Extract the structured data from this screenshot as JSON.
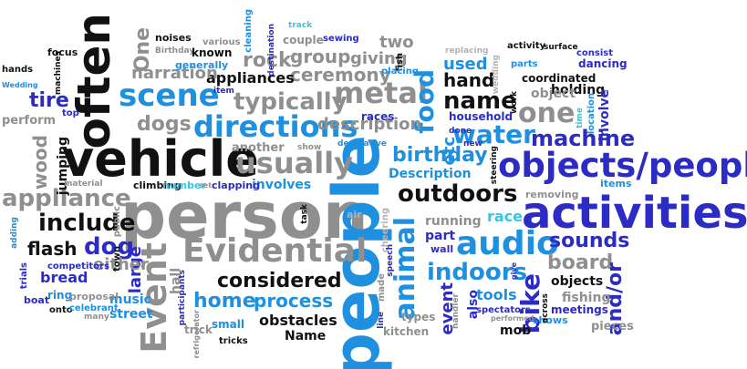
{
  "words": [
    {
      "id": "person",
      "text": "person",
      "color": "#8f8f8f"
    },
    {
      "id": "people",
      "text": "people",
      "color": "#1f8fe0"
    },
    {
      "id": "vehicle",
      "text": "vehicle",
      "color": "#111111"
    },
    {
      "id": "often",
      "text": "often",
      "color": "#111111"
    },
    {
      "id": "activities",
      "text": "activities",
      "color": "#2c2cc4"
    },
    {
      "id": "objects_people",
      "text": "objects/people",
      "color": "#2c2cc4"
    },
    {
      "id": "evidential",
      "text": "Evidential",
      "color": "#8f8f8f"
    },
    {
      "id": "event_big",
      "text": "Event",
      "color": "#8f8f8f"
    },
    {
      "id": "scene",
      "text": "scene",
      "color": "#1f8fe0"
    },
    {
      "id": "directions",
      "text": "directions",
      "color": "#1f8fe0"
    },
    {
      "id": "usually",
      "text": "usually",
      "color": "#8f8f8f"
    },
    {
      "id": "metal",
      "text": "metal",
      "color": "#8f8f8f"
    },
    {
      "id": "typically",
      "text": "typically",
      "color": "#8f8f8f"
    },
    {
      "id": "audio",
      "text": "audio",
      "color": "#1f8fe0"
    },
    {
      "id": "animal",
      "text": "animal",
      "color": "#1f8fe0"
    },
    {
      "id": "outdoors",
      "text": "outdoors",
      "color": "#111111"
    },
    {
      "id": "include",
      "text": "include",
      "color": "#111111"
    },
    {
      "id": "appliance",
      "text": "appliance",
      "color": "#8f8f8f"
    },
    {
      "id": "water",
      "text": "water",
      "color": "#1f8fe0"
    },
    {
      "id": "machine",
      "text": "machine",
      "color": "#2c2cc4"
    },
    {
      "id": "one",
      "text": "one",
      "color": "#8f8f8f"
    },
    {
      "id": "name",
      "text": "name",
      "color": "#111111"
    },
    {
      "id": "food",
      "text": "food",
      "color": "#1f8fe0"
    },
    {
      "id": "birthday",
      "text": "birthday",
      "color": "#1f8fe0"
    },
    {
      "id": "dog",
      "text": "dog",
      "color": "#2c2cc4"
    },
    {
      "id": "flash",
      "text": "flash",
      "color": "#111111"
    },
    {
      "id": "considered",
      "text": "considered",
      "color": "#111111"
    },
    {
      "id": "indoors",
      "text": "indoors",
      "color": "#1f8fe0"
    },
    {
      "id": "sounds",
      "text": "sounds",
      "color": "#2c2cc4"
    },
    {
      "id": "board",
      "text": "board",
      "color": "#8f8f8f"
    },
    {
      "id": "home",
      "text": "home",
      "color": "#1f8fe0"
    },
    {
      "id": "process",
      "text": "process",
      "color": "#1f8fe0"
    },
    {
      "id": "bike",
      "text": "bike",
      "color": "#2c2cc4"
    },
    {
      "id": "and_or",
      "text": "and/or",
      "color": "#2c2cc4"
    },
    {
      "id": "dogs",
      "text": "dogs",
      "color": "#8f8f8f"
    },
    {
      "id": "rock",
      "text": "rock",
      "color": "#8f8f8f"
    },
    {
      "id": "ceremony",
      "text": "ceremony",
      "color": "#8f8f8f"
    },
    {
      "id": "group",
      "text": "group",
      "color": "#8f8f8f"
    },
    {
      "id": "giving",
      "text": "giving",
      "color": "#8f8f8f"
    },
    {
      "id": "description",
      "text": "description",
      "color": "#8f8f8f"
    },
    {
      "id": "appliances",
      "text": "appliances",
      "color": "#111111"
    },
    {
      "id": "narration",
      "text": "narration",
      "color": "#8f8f8f"
    },
    {
      "id": "hand",
      "text": "hand",
      "color": "#111111"
    },
    {
      "id": "used",
      "text": "used",
      "color": "#1f8fe0"
    },
    {
      "id": "tire",
      "text": "tire",
      "color": "#2c2cc4"
    },
    {
      "id": "wood",
      "text": "wood",
      "color": "#8f8f8f"
    },
    {
      "id": "one_small",
      "text": "One",
      "color": "#8f8f8f"
    },
    {
      "id": "two",
      "text": "two",
      "color": "#8f8f8f"
    },
    {
      "id": "bread",
      "text": "bread",
      "color": "#2c2cc4"
    },
    {
      "id": "large",
      "text": "large",
      "color": "#2c2cc4"
    },
    {
      "id": "either",
      "text": "either",
      "color": "#8f8f8f"
    },
    {
      "id": "music",
      "text": "music",
      "color": "#1f8fe0"
    },
    {
      "id": "street",
      "text": "street",
      "color": "#1f8fe0"
    },
    {
      "id": "obstacles",
      "text": "obstacles",
      "color": "#111111"
    },
    {
      "id": "name_cap",
      "text": "Name",
      "color": "#111111"
    },
    {
      "id": "running",
      "text": "running",
      "color": "#8f8f8f"
    },
    {
      "id": "race",
      "text": "race",
      "color": "#30c7e8"
    },
    {
      "id": "part",
      "text": "part",
      "color": "#2c2cc4"
    },
    {
      "id": "tools",
      "text": "tools",
      "color": "#1f8fe0"
    },
    {
      "id": "objects",
      "text": "objects",
      "color": "#111111"
    },
    {
      "id": "fishing",
      "text": "fishing",
      "color": "#8f8f8f"
    },
    {
      "id": "event_small",
      "text": "event",
      "color": "#2c2cc4"
    },
    {
      "id": "etc",
      "text": "etc",
      "color": "#1f8fe0"
    },
    {
      "id": "description_cap",
      "text": "Description",
      "color": "#1f8fe0"
    },
    {
      "id": "another",
      "text": "another",
      "color": "#8f8f8f"
    },
    {
      "id": "involves",
      "text": "involves",
      "color": "#1f8fe0"
    },
    {
      "id": "jumping",
      "text": "jumping",
      "color": "#111111"
    },
    {
      "id": "holding",
      "text": "holding",
      "color": "#111111"
    },
    {
      "id": "coordinated",
      "text": "coordinated",
      "color": "#111111"
    },
    {
      "id": "object",
      "text": "object",
      "color": "#8f8f8f"
    },
    {
      "id": "involve",
      "text": "involve",
      "color": "#2c2cc4"
    },
    {
      "id": "household",
      "text": "household",
      "color": "#2c2cc4"
    },
    {
      "id": "races",
      "text": "races",
      "color": "#2c2cc4"
    },
    {
      "id": "mob",
      "text": "mob",
      "color": "#111111"
    },
    {
      "id": "kitchen",
      "text": "kitchen",
      "color": "#8f8f8f"
    },
    {
      "id": "types",
      "text": "types",
      "color": "#8f8f8f"
    },
    {
      "id": "also",
      "text": "also",
      "color": "#2c2cc4"
    },
    {
      "id": "pieces",
      "text": "pieces",
      "color": "#8f8f8f"
    },
    {
      "id": "shows",
      "text": "shows",
      "color": "#1f8fe0"
    },
    {
      "id": "meetings",
      "text": "meetings",
      "color": "#2c2cc4"
    },
    {
      "id": "small",
      "text": "small",
      "color": "#1f8fe0"
    },
    {
      "id": "trick",
      "text": "trick",
      "color": "#8f8f8f"
    },
    {
      "id": "tricks",
      "text": "tricks",
      "color": "#111111"
    },
    {
      "id": "hall",
      "text": "hall",
      "color": "#8f8f8f"
    },
    {
      "id": "ring",
      "text": "ring",
      "color": "#1f8fe0"
    },
    {
      "id": "boat",
      "text": "boat",
      "color": "#2c2cc4"
    },
    {
      "id": "competitors",
      "text": "competitors",
      "color": "#2c2cc4"
    },
    {
      "id": "trials",
      "text": "trials",
      "color": "#2c2cc4"
    },
    {
      "id": "onto",
      "text": "onto",
      "color": "#111111"
    },
    {
      "id": "many",
      "text": "many",
      "color": "#8f8f8f"
    },
    {
      "id": "celebrant",
      "text": "celebrant",
      "color": "#1f8fe0"
    },
    {
      "id": "proposal",
      "text": "proposal",
      "color": "#8f8f8f"
    },
    {
      "id": "town",
      "text": "town",
      "color": "#111111"
    },
    {
      "id": "public",
      "text": "public",
      "color": "#8f8f8f"
    },
    {
      "id": "adding",
      "text": "adding",
      "color": "#1f8fe0"
    },
    {
      "id": "material",
      "text": "material",
      "color": "#8f8f8f"
    },
    {
      "id": "perform",
      "text": "perform",
      "color": "#8f8f8f"
    },
    {
      "id": "top",
      "text": "top",
      "color": "#2c2cc4"
    },
    {
      "id": "hands",
      "text": "hands",
      "color": "#111111"
    },
    {
      "id": "focus",
      "text": "focus",
      "color": "#111111"
    },
    {
      "id": "machines",
      "text": "machines",
      "color": "#111111"
    },
    {
      "id": "wedding_cap",
      "text": "Wedding",
      "color": "#1f8fe0"
    },
    {
      "id": "noises",
      "text": "noises",
      "color": "#111111"
    },
    {
      "id": "birthday_cap",
      "text": "Birthday",
      "color": "#8f8f8f"
    },
    {
      "id": "various",
      "text": "various",
      "color": "#8f8f8f"
    },
    {
      "id": "known",
      "text": "known",
      "color": "#111111"
    },
    {
      "id": "generally",
      "text": "generally",
      "color": "#1f8fe0"
    },
    {
      "id": "cleaning",
      "text": "cleaning",
      "color": "#1f8fe0"
    },
    {
      "id": "destination",
      "text": "destination",
      "color": "#2c2cc4"
    },
    {
      "id": "track",
      "text": "track",
      "color": "#30c7e8"
    },
    {
      "id": "couple",
      "text": "couple",
      "color": "#8f8f8f"
    },
    {
      "id": "sewing",
      "text": "sewing",
      "color": "#2c2cc4"
    },
    {
      "id": "fish",
      "text": "fish",
      "color": "#111111"
    },
    {
      "id": "placing",
      "text": "placing",
      "color": "#1f8fe0"
    },
    {
      "id": "item",
      "text": "item",
      "color": "#2c2cc4"
    },
    {
      "id": "replacing",
      "text": "replacing",
      "color": "#b3b3b3"
    },
    {
      "id": "wedding",
      "text": "wedding",
      "color": "#b3b3b3"
    },
    {
      "id": "activity",
      "text": "activity",
      "color": "#111111"
    },
    {
      "id": "surface",
      "text": "surface",
      "color": "#111111"
    },
    {
      "id": "consist",
      "text": "consist",
      "color": "#2c2cc4"
    },
    {
      "id": "parts",
      "text": "parts",
      "color": "#1f8fe0"
    },
    {
      "id": "dancing",
      "text": "dancing",
      "color": "#2c2cc4"
    },
    {
      "id": "work",
      "text": "work",
      "color": "#111111"
    },
    {
      "id": "time",
      "text": "time",
      "color": "#30c7e8"
    },
    {
      "id": "location",
      "text": "location",
      "color": "#1f8fe0"
    },
    {
      "id": "done",
      "text": "done",
      "color": "#2c2cc4"
    },
    {
      "id": "new",
      "text": "new",
      "color": "#2c2cc4"
    },
    {
      "id": "steering",
      "text": "steering",
      "color": "#111111"
    },
    {
      "id": "removing",
      "text": "removing",
      "color": "#8f8f8f"
    },
    {
      "id": "items",
      "text": "items",
      "color": "#1f8fe0"
    },
    {
      "id": "show",
      "text": "show",
      "color": "#8f8f8f"
    },
    {
      "id": "decorative",
      "text": "decorative",
      "color": "#1f8fe0"
    },
    {
      "id": "task",
      "text": "task",
      "color": "#111111"
    },
    {
      "id": "air",
      "text": "air",
      "color": "#b3b3b3"
    },
    {
      "id": "cheering",
      "text": "cheering",
      "color": "#b3b3b3"
    },
    {
      "id": "wall",
      "text": "wall",
      "color": "#2c2cc4"
    },
    {
      "id": "climbing",
      "text": "climbing",
      "color": "#111111"
    },
    {
      "id": "number",
      "text": "number",
      "color": "#30c7e8"
    },
    {
      "id": "set",
      "text": "set",
      "color": "#8f8f8f"
    },
    {
      "id": "clapping",
      "text": "clapping",
      "color": "#2c2cc4"
    },
    {
      "id": "speech",
      "text": "speech",
      "color": "#2c2cc4"
    },
    {
      "id": "made",
      "text": "made",
      "color": "#8f8f8f"
    },
    {
      "id": "line",
      "text": "line",
      "color": "#2c2cc4"
    },
    {
      "id": "handler",
      "text": "handler",
      "color": "#8f8f8f"
    },
    {
      "id": "give",
      "text": "give",
      "color": "#2c2cc4"
    },
    {
      "id": "across",
      "text": "across",
      "color": "#111111"
    },
    {
      "id": "performed",
      "text": "performed",
      "color": "#8f8f8f"
    },
    {
      "id": "spectators",
      "text": "spectators",
      "color": "#2c2cc4"
    },
    {
      "id": "participants",
      "text": "participants",
      "color": "#2c2cc4"
    },
    {
      "id": "refrigerator",
      "text": "refrigerator",
      "color": "#8f8f8f"
    }
  ]
}
